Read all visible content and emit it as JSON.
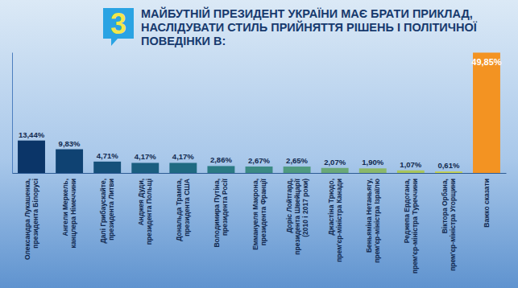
{
  "chart_data": {
    "type": "bar",
    "title": "МАЙБУТНІЙ ПРЕЗИДЕНТ УКРАЇНИ МАЄ БРАТИ ПРИКЛАД, НАСЛІДУВАТИ СТИЛЬ ПРИЙНЯТТЯ РІШЕНЬ І ПОЛІТИЧНОЇ ПОВЕДІНКИ В:",
    "annotations": [
      "3"
    ],
    "categories": [
      "Олександра Лукашенка,\nпрезидента Білорусі",
      "Ангели Меркель,\nканцлера Німеччини",
      "Далі Грибаускайте,\nпрезидента Литви",
      "Анджея Дуди,\nпрезидента Польщі",
      "Дональда Трампа,\nпрезидента США",
      "Володимира Путіна,\nпрезидента Росії",
      "Еммануеля Макрона,\nпрезидента Франції",
      "Доріс Лойтгард,\nпрезидента Швейцарії\n(2010 і 2017 роки)",
      "Джастіна Трюдо,\nпрем'єр-міністра Канади",
      "Беньяміна Нетаньягу,\nпрем'єр-міністра Ізраїлю",
      "Реджепа Ердогана,\nпрем'єр-міністра Туреччини",
      "Віктора Орбана,\nпрем'єр-міністра Угорщини",
      "Важко сказати"
    ],
    "values": [
      13.44,
      9.83,
      4.71,
      4.17,
      4.17,
      2.86,
      2.67,
      2.65,
      2.07,
      1.9,
      1.07,
      0.61,
      49.85
    ],
    "value_labels": [
      "13,44%",
      "9,83%",
      "4,71%",
      "4,17%",
      "4,17%",
      "2,86%",
      "2,67%",
      "2,65%",
      "2,07%",
      "1,90%",
      "1,07%",
      "0,61%",
      "49,85%"
    ],
    "colors": [
      "#0b3568",
      "#0f4272",
      "#15507a",
      "#1a5e80",
      "#1f6a82",
      "#2a7a84",
      "#3b8a84",
      "#4f9a80",
      "#6aa878",
      "#8ab86a",
      "#a9c65c",
      "#c7d24f",
      "#f39322"
    ],
    "ylim": [
      0,
      50
    ],
    "yticks": [],
    "data_labels": true,
    "tick_labels": "x"
  }
}
